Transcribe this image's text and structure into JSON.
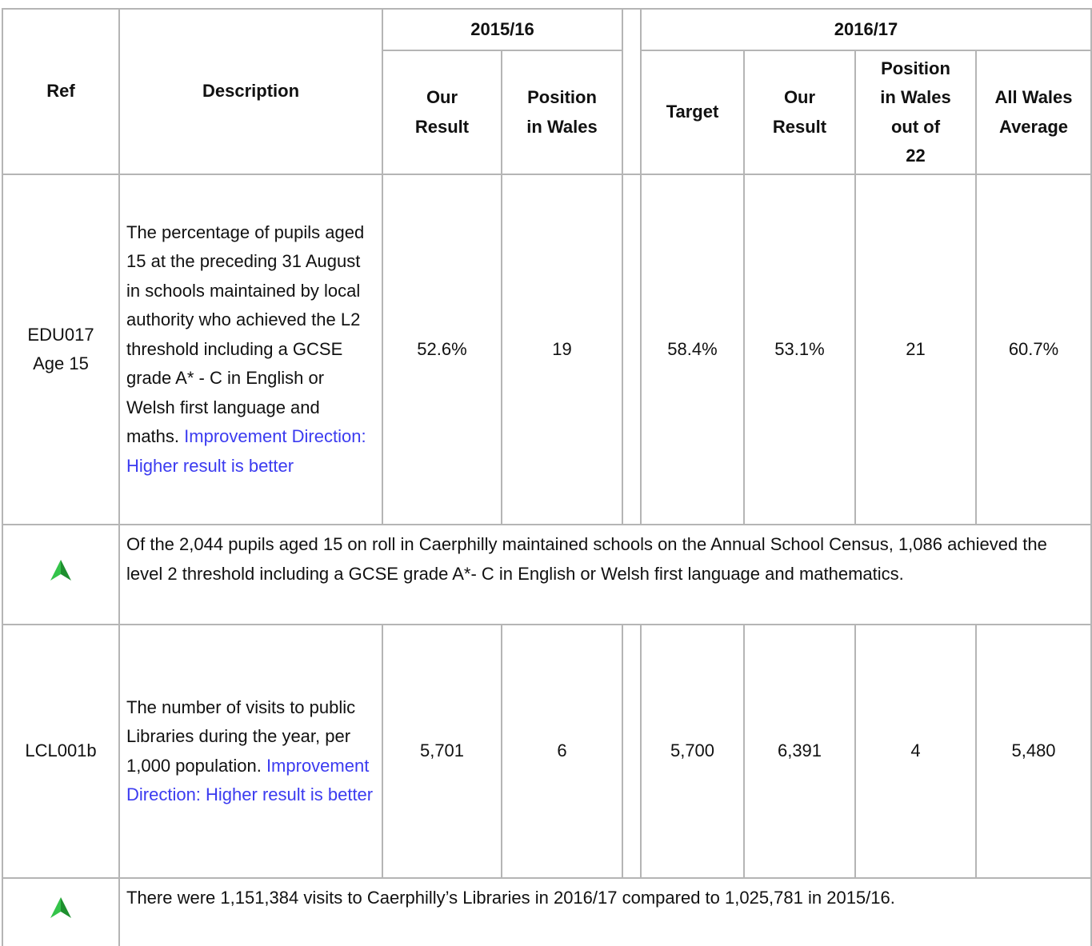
{
  "table": {
    "header": {
      "ref": "Ref",
      "description": "Description",
      "years": [
        "2015/16",
        "2016/17"
      ],
      "columns": [
        [
          "Our",
          "Result"
        ],
        [
          "Position",
          "in Wales"
        ],
        [
          "Target"
        ],
        [
          "Our",
          "Result"
        ],
        [
          "Position",
          "in Wales",
          "out of",
          "22"
        ],
        [
          "All Wales",
          "Average"
        ]
      ]
    },
    "rows": [
      {
        "ref": [
          "EDU017",
          "Age 15"
        ],
        "description": "The percentage of pupils aged 15 at the preceding 31 August in schools maintained by local authority who achieved the L2 threshold including a GCSE grade A* - C in English or Welsh first language and maths.",
        "direction": "Improvement Direction: Higher result is better",
        "values": [
          "52.6%",
          "19",
          "58.4%",
          "53.1%",
          "21",
          "60.7%"
        ],
        "commentary": "Of the 2,044 pupils aged 15 on roll in Caerphilly maintained schools on the Annual School Census, 1,086 achieved the level 2 threshold including a GCSE grade A*- C in English or Welsh first language and mathematics."
      },
      {
        "ref": [
          "LCL001b"
        ],
        "description": "The number of visits to public Libraries during the year, per 1,000 population. ",
        "direction": "Improvement Direction: Higher result is better",
        "values": [
          "5,701",
          "6",
          "5,700",
          "6,391",
          "4",
          "5,480"
        ],
        "commentary": "There were 1,151,384 visits to Caerphilly’s Libraries in 2016/17 compared to 1,025,781 in 2015/16."
      }
    ]
  }
}
